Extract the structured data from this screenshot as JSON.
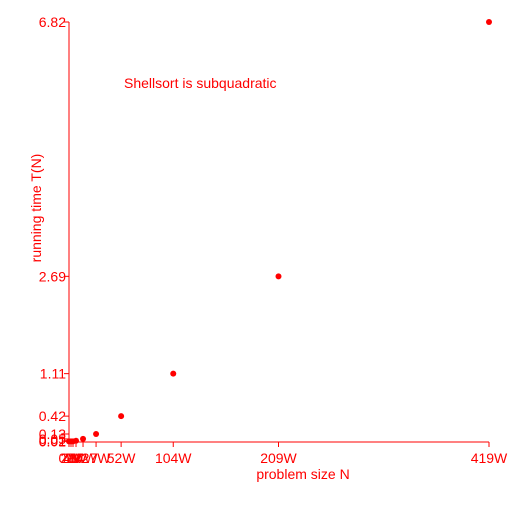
{
  "chart_data": {
    "type": "scatter",
    "title": "Shellsort is subquadratic",
    "xlabel": "problem size N",
    "ylabel": "running time T(N)",
    "x": [
      0,
      2,
      4,
      7,
      14,
      27,
      52,
      104,
      209,
      419
    ],
    "y": [
      0.01,
      0.01,
      0.01,
      0.02,
      0.05,
      0.13,
      0.42,
      1.11,
      2.69,
      6.82
    ],
    "x_ticks": [
      {
        "value": 0,
        "label": "0W"
      },
      {
        "value": 2,
        "label": "2W"
      },
      {
        "value": 4,
        "label": "4W"
      },
      {
        "value": 7,
        "label": "7W"
      },
      {
        "value": 14,
        "label": "14W"
      },
      {
        "value": 27,
        "label": "27W"
      },
      {
        "value": 52,
        "label": "52W"
      },
      {
        "value": 104,
        "label": "104W"
      },
      {
        "value": 209,
        "label": "209W"
      },
      {
        "value": 419,
        "label": "419W"
      }
    ],
    "y_ticks": [
      {
        "value": 0.01,
        "label": "0.01"
      },
      {
        "value": 0.02,
        "label": "0.02"
      },
      {
        "value": 0.05,
        "label": "0.05"
      },
      {
        "value": 0.13,
        "label": "0.13"
      },
      {
        "value": 0.42,
        "label": "0.42"
      },
      {
        "value": 1.11,
        "label": "1.11"
      },
      {
        "value": 2.69,
        "label": "2.69"
      },
      {
        "value": 6.82,
        "label": "6.82"
      }
    ],
    "xlim": [
      0,
      419
    ],
    "ylim": [
      0,
      6.82
    ],
    "grid": false,
    "color": "#ff0000"
  }
}
